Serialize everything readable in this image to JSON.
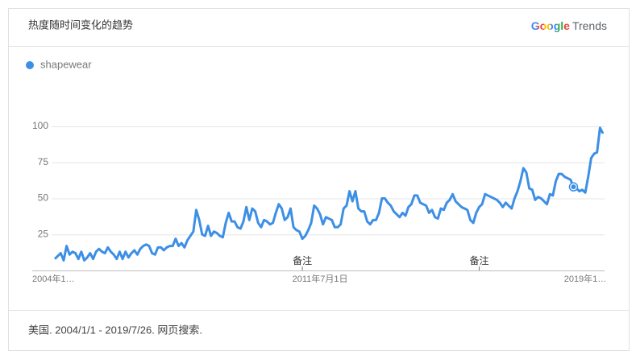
{
  "header": {
    "title": "热度随时间变化的趋势",
    "brand": "Google",
    "product": "Trends"
  },
  "footer": "美国. 2004/1/1 - 2019/7/26. 网页搜索.",
  "chart_data": {
    "type": "line",
    "categories": [
      "2004年1…",
      null,
      null,
      null,
      null,
      null,
      null,
      null,
      null,
      null,
      null,
      null,
      null,
      null,
      null,
      null,
      null,
      null,
      null,
      null,
      null,
      null,
      null,
      null,
      null,
      null,
      null,
      null,
      null,
      null,
      null,
      null,
      null,
      null,
      null,
      null,
      null,
      null,
      null,
      null,
      null,
      null,
      null,
      null,
      null,
      null,
      null,
      null,
      null,
      null,
      null,
      null,
      null,
      null,
      null,
      null,
      null,
      null,
      null,
      null,
      null,
      null,
      null,
      null,
      null,
      null,
      null,
      null,
      null,
      null,
      null,
      null,
      null,
      null,
      null,
      null,
      null,
      null,
      null,
      null,
      null,
      null,
      null,
      null,
      null,
      null,
      null,
      null,
      null,
      null,
      "2011年7月1日",
      null,
      null,
      null,
      null,
      null,
      null,
      null,
      null,
      null,
      null,
      null,
      null,
      null,
      null,
      null,
      null,
      null,
      null,
      null,
      null,
      null,
      null,
      null,
      null,
      null,
      null,
      null,
      null,
      null,
      null,
      null,
      null,
      null,
      null,
      null,
      null,
      null,
      null,
      null,
      null,
      null,
      null,
      null,
      null,
      null,
      null,
      null,
      null,
      null,
      null,
      null,
      null,
      null,
      null,
      null,
      null,
      null,
      null,
      null,
      null,
      null,
      null,
      null,
      null,
      null,
      null,
      null,
      null,
      null,
      null,
      null,
      null,
      null,
      null,
      null,
      null,
      null,
      null,
      null,
      null,
      null,
      null,
      null,
      null,
      null,
      null,
      null,
      null,
      null,
      "2019年1…",
      null,
      null,
      null,
      null,
      null,
      null
    ],
    "series": [
      {
        "name": "shapewear",
        "color": "#3d8fe5",
        "values": [
          8,
          10,
          12,
          7,
          17,
          11,
          13,
          12,
          8,
          13,
          7,
          9,
          12,
          8,
          13,
          15,
          13,
          12,
          16,
          13,
          11,
          8,
          13,
          8,
          13,
          9,
          12,
          14,
          11,
          15,
          17,
          18,
          17,
          12,
          11,
          16,
          16,
          14,
          16,
          17,
          17,
          22,
          17,
          19,
          16,
          21,
          24,
          27,
          42,
          35,
          25,
          24,
          31,
          24,
          27,
          26,
          24,
          23,
          33,
          40,
          34,
          34,
          30,
          29,
          34,
          44,
          35,
          43,
          41,
          33,
          30,
          35,
          34,
          32,
          33,
          40,
          46,
          43,
          35,
          37,
          43,
          30,
          28,
          27,
          22,
          24,
          28,
          33,
          45,
          43,
          39,
          32,
          37,
          36,
          35,
          30,
          30,
          32,
          43,
          45,
          55,
          48,
          55,
          43,
          41,
          41,
          34,
          32,
          35,
          35,
          40,
          50,
          50,
          47,
          45,
          41,
          39,
          37,
          40,
          38,
          44,
          46,
          52,
          52,
          47,
          46,
          45,
          40,
          42,
          37,
          36,
          43,
          42,
          47,
          49,
          53,
          48,
          46,
          44,
          43,
          42,
          35,
          33,
          40,
          44,
          46,
          53,
          52,
          51,
          50,
          49,
          47,
          44,
          47,
          45,
          43,
          50,
          55,
          62,
          71,
          68,
          57,
          56,
          49,
          51,
          50,
          48,
          46,
          53,
          52,
          62,
          67,
          67,
          65,
          64,
          63,
          58,
          57,
          55,
          56,
          54,
          65,
          78,
          81,
          82,
          99,
          95
        ]
      }
    ],
    "annotations": [
      "备注",
      "备注"
    ],
    "ylim": [
      0,
      100
    ],
    "yticks": [
      25,
      50,
      75,
      100
    ],
    "grid": true
  }
}
